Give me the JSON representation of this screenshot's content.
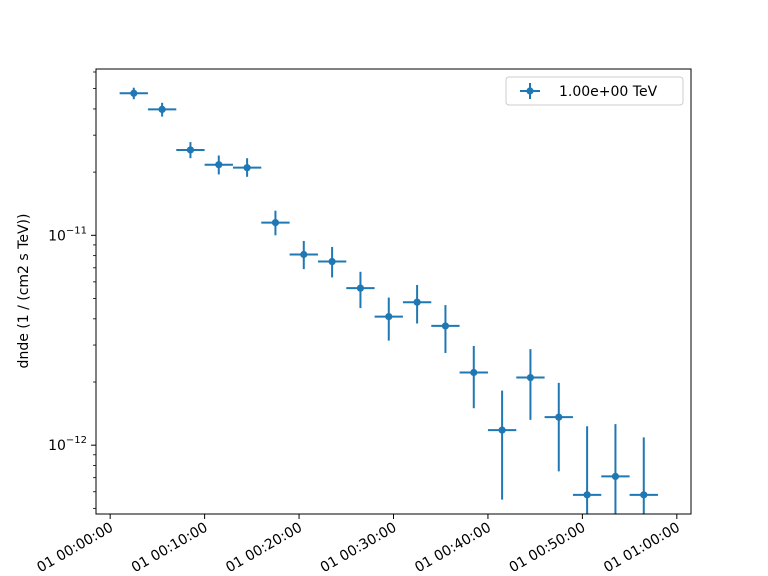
{
  "chart_data": {
    "type": "scatter",
    "title": "",
    "xlabel": "",
    "ylabel": "dnde (1 / (cm2 s TeV))",
    "yscale": "log",
    "grid": false,
    "legend_position": "top-right",
    "color": "#1f77b4",
    "xlim": [
      "1970-01-01 00:00:00",
      "1970-01-01 01:00:00"
    ],
    "ylim": [
      4.7e-13,
      6.2e-11
    ],
    "x_ticks": [
      {
        "value": "1970-01-01 00:00:00",
        "label": "01 00:00:00"
      },
      {
        "value": "1970-01-01 00:10:00",
        "label": "01 00:10:00"
      },
      {
        "value": "1970-01-01 00:20:00",
        "label": "01 00:20:00"
      },
      {
        "value": "1970-01-01 00:30:00",
        "label": "01 00:30:00"
      },
      {
        "value": "1970-01-01 00:40:00",
        "label": "01 00:40:00"
      },
      {
        "value": "1970-01-01 00:50:00",
        "label": "01 00:50:00"
      },
      {
        "value": "1970-01-01 01:00:00",
        "label": "01 01:00:00"
      }
    ],
    "y_ticks": [
      {
        "value": 1e-11,
        "base": "10",
        "exp": "−11"
      },
      {
        "value": 1e-12,
        "base": "10",
        "exp": "−12"
      }
    ],
    "series": [
      {
        "name": "1.00e+00 TeV",
        "points": [
          {
            "t_start": "00:01:00",
            "t_end": "00:04:00",
            "y": 4.75e-11,
            "y_lo": 4.45e-11,
            "y_hi": 5.05e-11
          },
          {
            "t_start": "00:04:00",
            "t_end": "00:07:00",
            "y": 3.98e-11,
            "y_lo": 3.68e-11,
            "y_hi": 4.28e-11
          },
          {
            "t_start": "00:07:00",
            "t_end": "00:10:00",
            "y": 2.55e-11,
            "y_lo": 2.33e-11,
            "y_hi": 2.78e-11
          },
          {
            "t_start": "00:10:00",
            "t_end": "00:13:00",
            "y": 2.17e-11,
            "y_lo": 1.95e-11,
            "y_hi": 2.4e-11
          },
          {
            "t_start": "00:13:00",
            "t_end": "00:16:00",
            "y": 2.1e-11,
            "y_lo": 1.9e-11,
            "y_hi": 2.33e-11
          },
          {
            "t_start": "00:16:00",
            "t_end": "00:19:00",
            "y": 1.15e-11,
            "y_lo": 1e-11,
            "y_hi": 1.31e-11
          },
          {
            "t_start": "00:19:00",
            "t_end": "00:22:00",
            "y": 8.1e-12,
            "y_lo": 6.9e-12,
            "y_hi": 9.4e-12
          },
          {
            "t_start": "00:22:00",
            "t_end": "00:25:00",
            "y": 7.5e-12,
            "y_lo": 6.3e-12,
            "y_hi": 8.8e-12
          },
          {
            "t_start": "00:25:00",
            "t_end": "00:28:00",
            "y": 5.6e-12,
            "y_lo": 4.5e-12,
            "y_hi": 6.7e-12
          },
          {
            "t_start": "00:28:00",
            "t_end": "00:31:00",
            "y": 4.1e-12,
            "y_lo": 3.15e-12,
            "y_hi": 5.05e-12
          },
          {
            "t_start": "00:31:00",
            "t_end": "00:34:00",
            "y": 4.8e-12,
            "y_lo": 3.8e-12,
            "y_hi": 5.8e-12
          },
          {
            "t_start": "00:34:00",
            "t_end": "00:37:00",
            "y": 3.7e-12,
            "y_lo": 2.75e-12,
            "y_hi": 4.65e-12
          },
          {
            "t_start": "00:37:00",
            "t_end": "00:40:00",
            "y": 2.22e-12,
            "y_lo": 1.5e-12,
            "y_hi": 2.97e-12
          },
          {
            "t_start": "00:40:00",
            "t_end": "00:43:00",
            "y": 1.18e-12,
            "y_lo": 5.5e-13,
            "y_hi": 1.82e-12
          },
          {
            "t_start": "00:43:00",
            "t_end": "00:46:00",
            "y": 2.1e-12,
            "y_lo": 1.32e-12,
            "y_hi": 2.87e-12
          },
          {
            "t_start": "00:46:00",
            "t_end": "00:49:00",
            "y": 1.36e-12,
            "y_lo": 7.5e-13,
            "y_hi": 1.98e-12
          },
          {
            "t_start": "00:49:00",
            "t_end": "00:52:00",
            "y": 5.8e-13,
            "y_lo": 4e-13,
            "y_hi": 1.23e-12
          },
          {
            "t_start": "00:52:00",
            "t_end": "00:55:00",
            "y": 7.1e-13,
            "y_lo": 4e-13,
            "y_hi": 1.26e-12
          },
          {
            "t_start": "00:55:00",
            "t_end": "00:58:00",
            "y": 5.8e-13,
            "y_lo": 4e-13,
            "y_hi": 1.09e-12
          }
        ]
      }
    ]
  }
}
